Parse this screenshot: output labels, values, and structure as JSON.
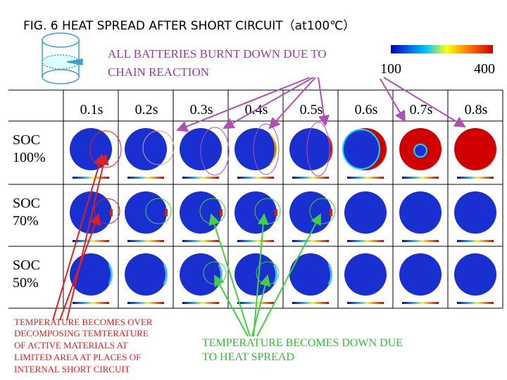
{
  "title": "FIG. 6 HEAT SPREAD AFTER SHORT CIRCUIT（at100℃）",
  "top_annotation": [
    "ALL BATTERIES BURNT DOWN DUE TO",
    "CHAIN REACTION"
  ],
  "colorbar": {
    "min": 100,
    "max": 400
  },
  "columns": [
    "0.1s",
    "0.2s",
    "0.3s",
    "0.4s",
    "0.5s",
    "0.6s",
    "0.7s",
    "0.8s"
  ],
  "rows": [
    [
      "SOC",
      "100%"
    ],
    [
      "SOC",
      "70%"
    ],
    [
      "SOC",
      "50%"
    ]
  ],
  "bottom_left": [
    "TEMPERATURE BECOMES OVER",
    "DECOMPOSING TEMTERATURE",
    "OF ACTIVE MATERIALS AT",
    "LIMITED AREA AT PLACES OF",
    "INTERNAL SHORT CIRCUIT"
  ],
  "bottom_right": [
    "TEMPERATURE BECOMES DOWN DUE",
    "TO HEAT SPREAD"
  ]
}
